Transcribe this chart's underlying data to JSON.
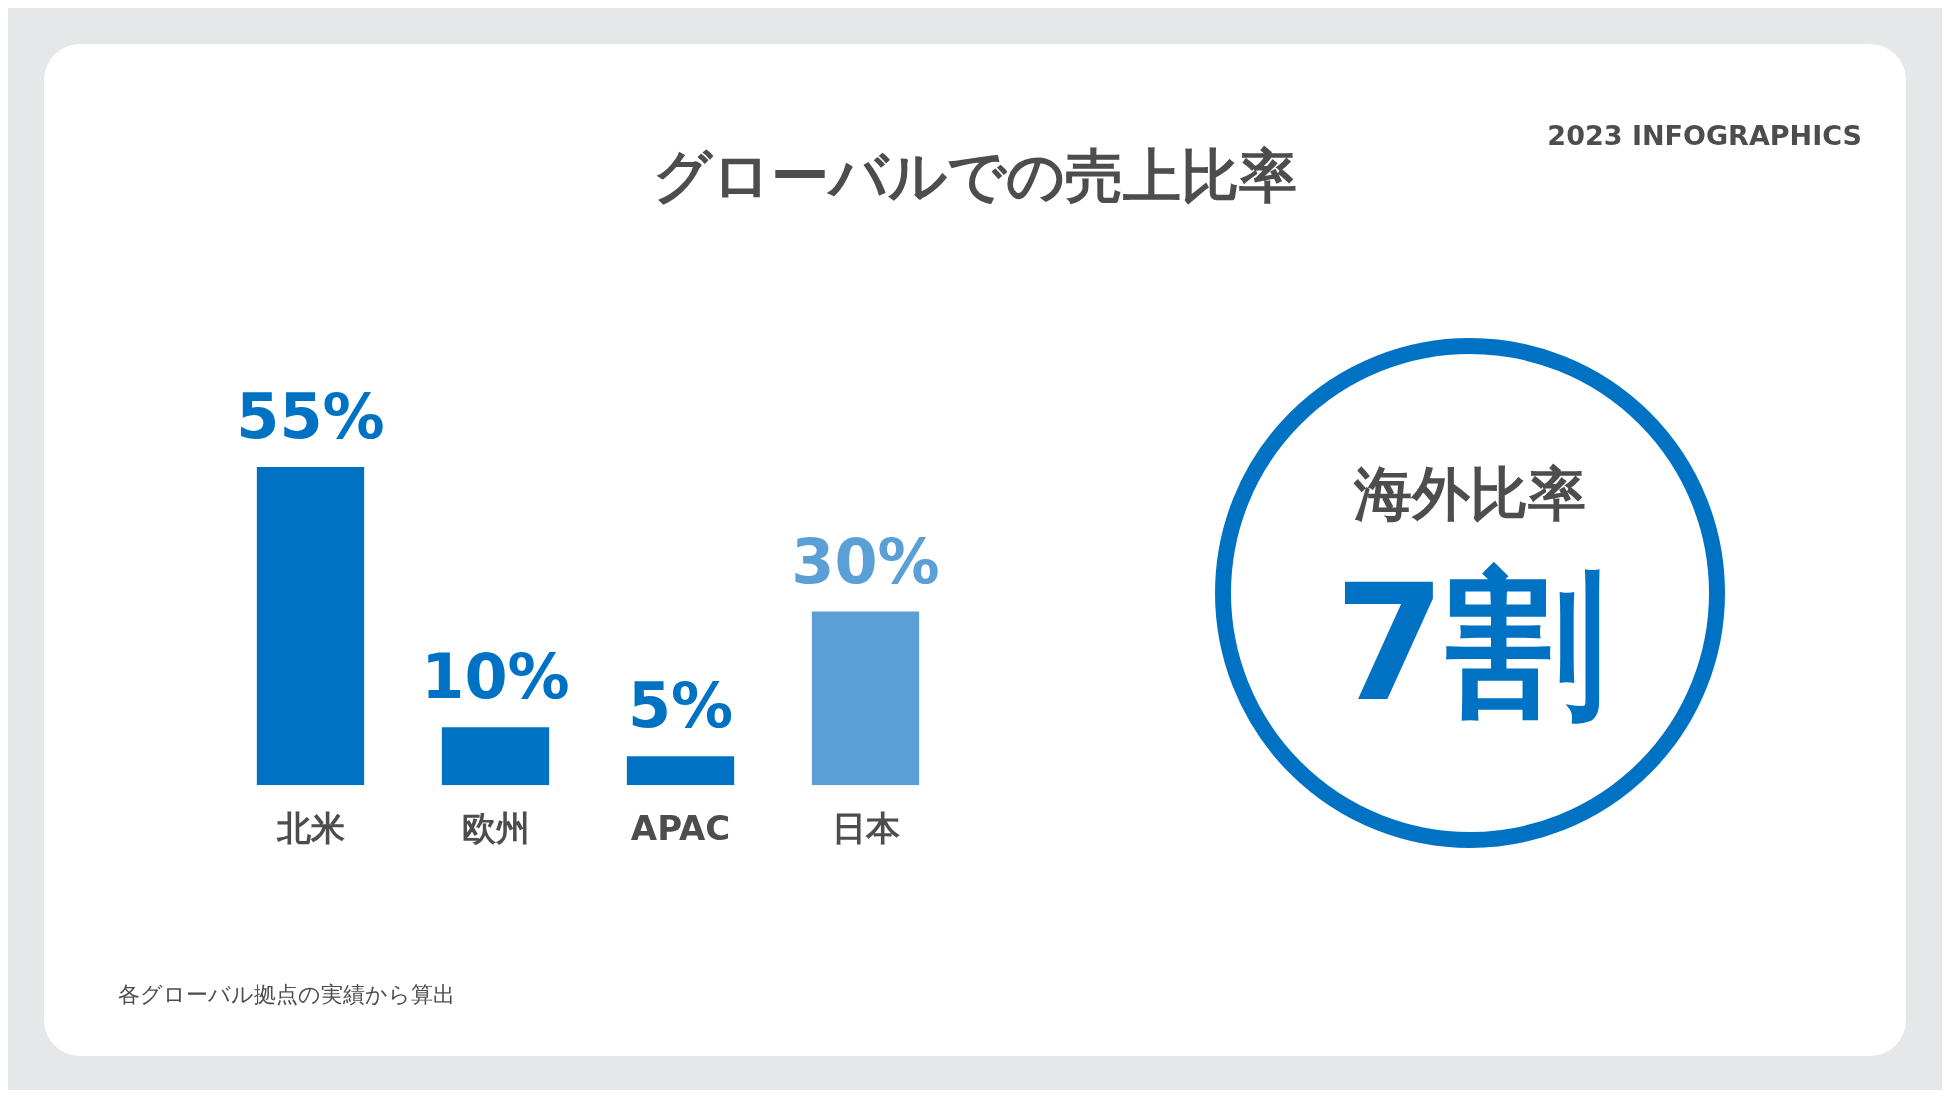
{
  "chart_data": {
    "type": "bar",
    "title": "グローバルでの売上比率",
    "subtitle": "2023 INFOGRAPHICS",
    "categories": [
      "北米",
      "欧州",
      "APAC",
      "日本"
    ],
    "values": [
      55,
      10,
      5,
      30
    ],
    "colors": [
      "#0072c3",
      "#0072c3",
      "#0072c3",
      "#5a9fd6"
    ],
    "value_labels": [
      "55%",
      "10%",
      "5%",
      "30%"
    ],
    "grid": false,
    "legend": false,
    "annotations": [
      "各グローバル拠点の実績から算出",
      "海外比率",
      "7割"
    ]
  }
}
